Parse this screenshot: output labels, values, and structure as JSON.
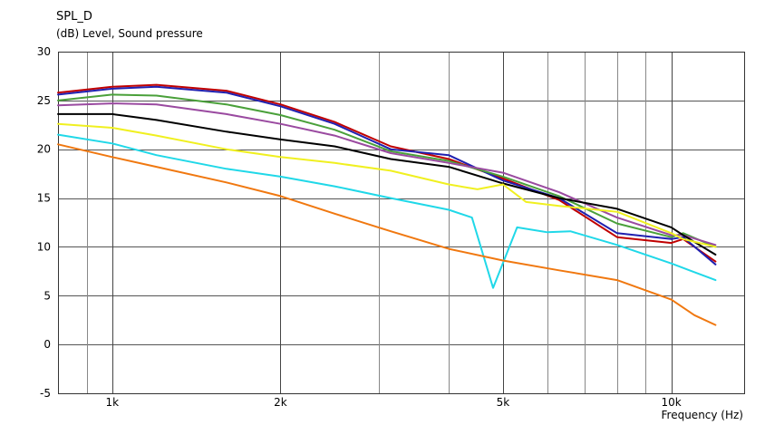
{
  "chart_data": {
    "type": "line",
    "title": "SPL_D",
    "ylabel": "(dB)  Level, Sound pressure",
    "xlabel": "Frequency  (Hz)",
    "xscale": "log",
    "xlim": [
      800,
      13500
    ],
    "ylim": [
      -5,
      30
    ],
    "grid": true,
    "y_ticks": [
      30,
      25,
      20,
      15,
      10,
      5,
      0,
      -5
    ],
    "y_tick_labels": [
      "30",
      "25",
      "20",
      "15",
      "10",
      "5",
      "0",
      "-5"
    ],
    "x_tick_labels": [
      {
        "x": 1000,
        "label": "1k"
      },
      {
        "x": 2000,
        "label": "2k"
      },
      {
        "x": 5000,
        "label": "5k"
      },
      {
        "x": 10000,
        "label": "10k"
      }
    ],
    "x_gridlines": [
      900,
      1000,
      2000,
      3000,
      4000,
      5000,
      6000,
      7000,
      8000,
      9000,
      10000
    ],
    "x_major_gridlines": [
      1000,
      2000,
      5000,
      10000
    ],
    "series": [
      {
        "color": "#c00000",
        "x": [
          800,
          1000,
          1200,
          1600,
          2000,
          2500,
          3150,
          4000,
          5000,
          6300,
          8000,
          10000,
          10500,
          12000
        ],
        "y": [
          25.8,
          26.4,
          26.6,
          26.0,
          24.6,
          22.8,
          20.3,
          19.0,
          17.0,
          14.8,
          11.0,
          10.4,
          10.8,
          8.5
        ]
      },
      {
        "color": "#2020b0",
        "x": [
          800,
          1000,
          1200,
          1600,
          2000,
          2500,
          3150,
          4000,
          5000,
          6300,
          8000,
          10000,
          10500,
          12000
        ],
        "y": [
          25.6,
          26.2,
          26.4,
          25.8,
          24.4,
          22.6,
          20.0,
          19.4,
          16.8,
          15.0,
          11.4,
          10.8,
          11.0,
          8.2
        ]
      },
      {
        "color": "#4aa03a",
        "x": [
          800,
          1000,
          1200,
          1600,
          2000,
          2500,
          3150,
          4000,
          5000,
          6300,
          8000,
          10000,
          10500,
          12000
        ],
        "y": [
          25.0,
          25.6,
          25.5,
          24.6,
          23.5,
          22.0,
          19.8,
          18.8,
          17.2,
          15.2,
          12.4,
          11.0,
          11.4,
          10.0
        ]
      },
      {
        "color": "#9a4aa0",
        "x": [
          800,
          1000,
          1200,
          1600,
          2000,
          2500,
          3150,
          4000,
          5000,
          6300,
          8000,
          10000,
          10500,
          12000
        ],
        "y": [
          24.5,
          24.7,
          24.6,
          23.6,
          22.6,
          21.4,
          19.6,
          18.6,
          17.6,
          15.6,
          13.0,
          11.2,
          11.2,
          10.2
        ]
      },
      {
        "color": "#000000",
        "x": [
          800,
          1000,
          1200,
          1600,
          2000,
          2500,
          3150,
          4000,
          5000,
          6300,
          8000,
          10000,
          10500,
          12000
        ],
        "y": [
          23.6,
          23.6,
          23.0,
          21.8,
          21.0,
          20.3,
          19.0,
          18.2,
          16.5,
          15.0,
          13.9,
          12.0,
          11.2,
          9.2
        ]
      },
      {
        "color": "#f0f020",
        "x": [
          800,
          1000,
          1200,
          1600,
          2000,
          2500,
          3150,
          4000,
          4500,
          5000,
          5500,
          6300,
          8000,
          10000,
          10500,
          12000
        ],
        "y": [
          22.6,
          22.2,
          21.4,
          20.0,
          19.2,
          18.6,
          17.8,
          16.4,
          15.9,
          16.4,
          14.6,
          14.2,
          13.6,
          11.4,
          10.8,
          10.0
        ]
      },
      {
        "color": "#20d8e8",
        "x": [
          800,
          1000,
          1200,
          1600,
          2000,
          2500,
          3150,
          4000,
          4400,
          4800,
          5300,
          6000,
          6600,
          8000,
          10000,
          12000
        ],
        "y": [
          21.5,
          20.6,
          19.4,
          18.0,
          17.2,
          16.2,
          15.0,
          13.8,
          13.0,
          5.8,
          12.0,
          11.5,
          11.6,
          10.2,
          8.3,
          6.6
        ]
      },
      {
        "color": "#f07810",
        "x": [
          800,
          1000,
          1200,
          1600,
          2000,
          2500,
          3150,
          4000,
          5000,
          6300,
          8000,
          10000,
          11000,
          12000
        ],
        "y": [
          20.5,
          19.2,
          18.2,
          16.6,
          15.2,
          13.4,
          11.6,
          9.8,
          8.6,
          7.6,
          6.6,
          4.6,
          3.0,
          2.0
        ]
      }
    ]
  }
}
